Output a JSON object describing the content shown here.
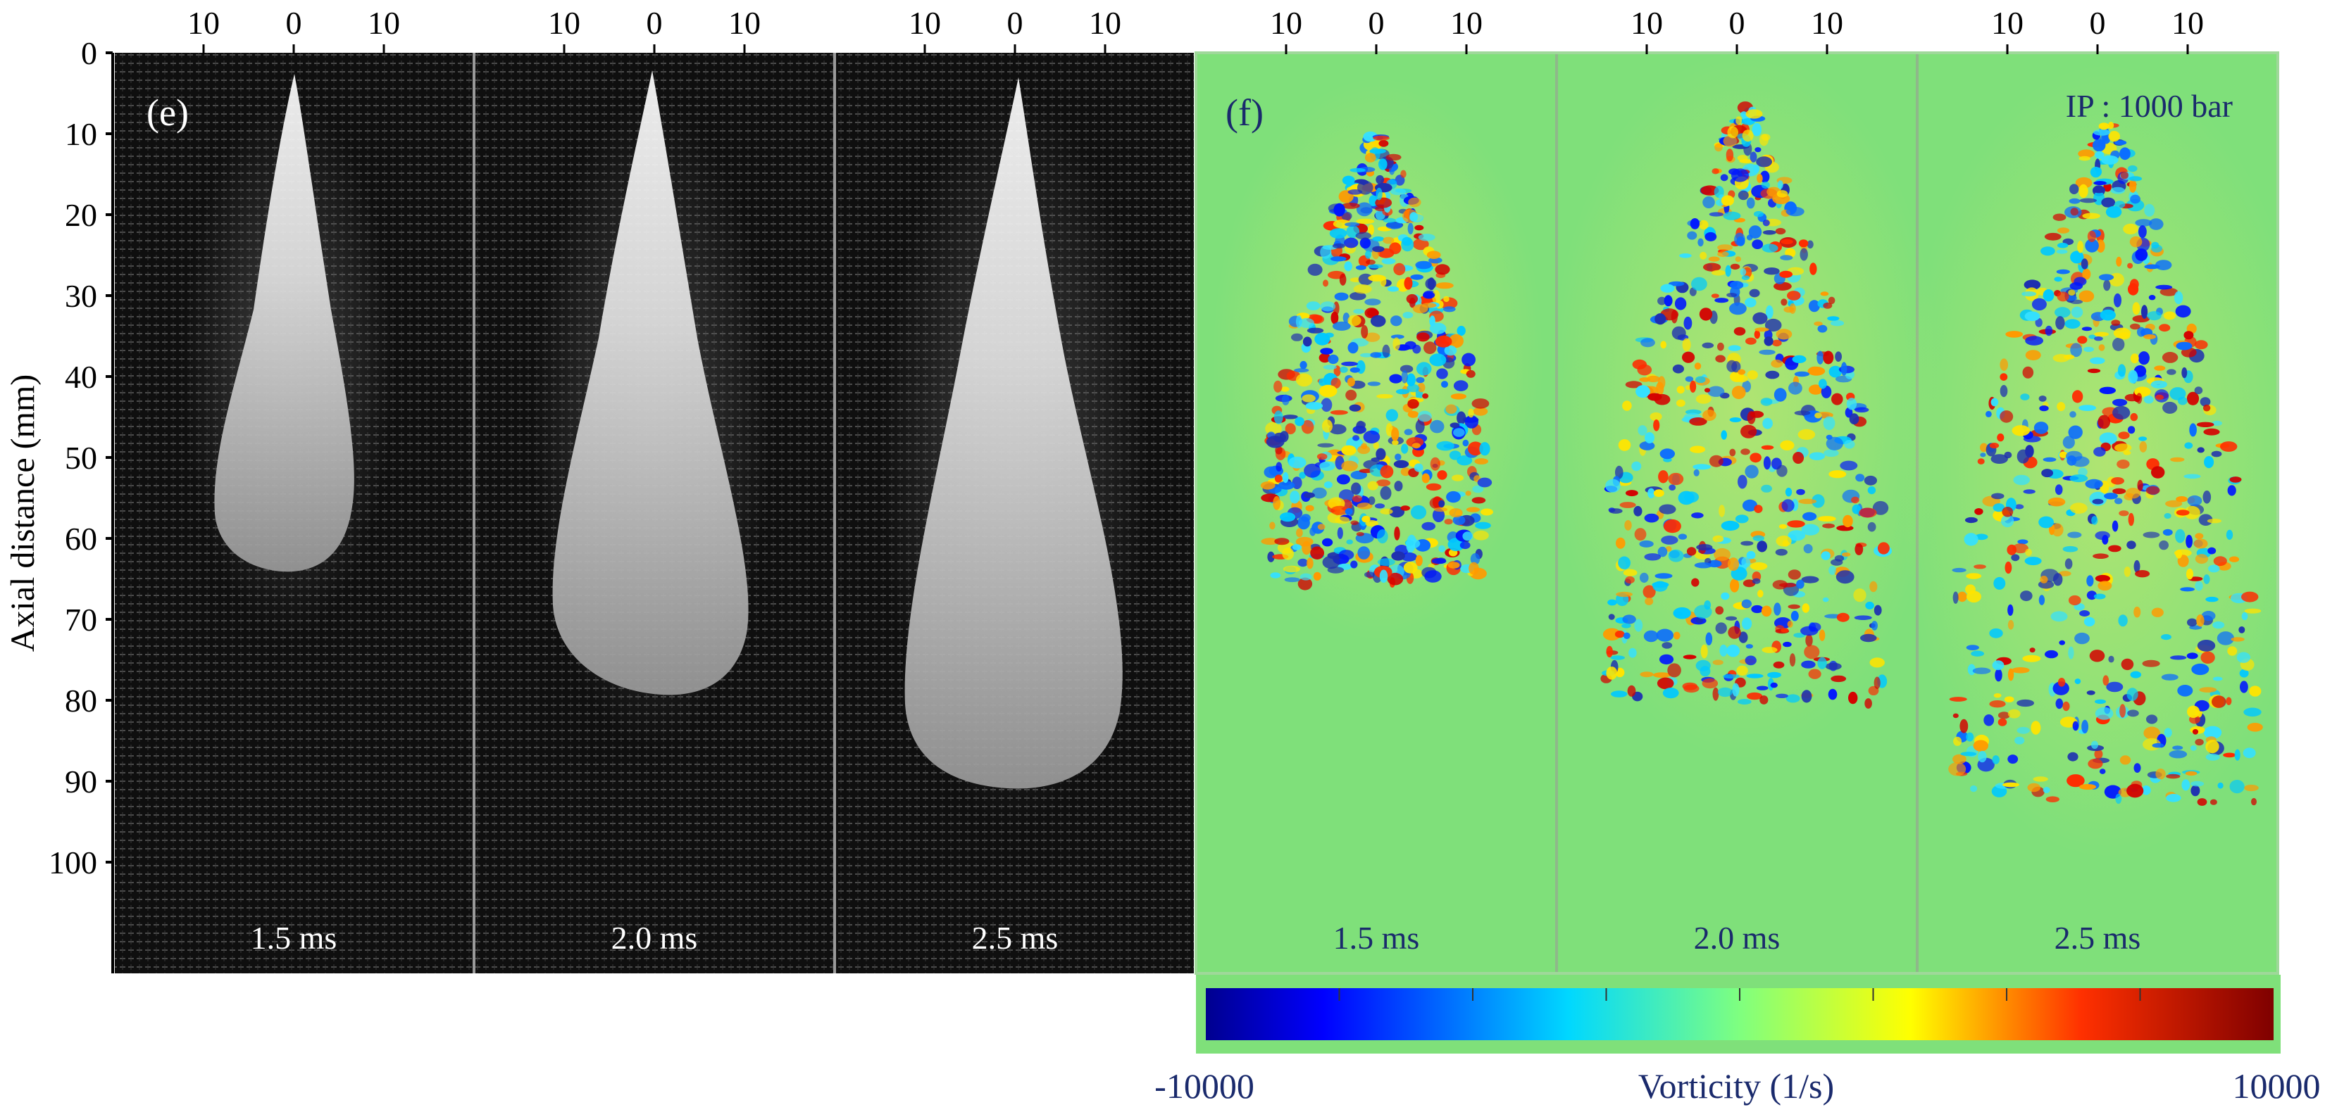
{
  "figure": {
    "y_axis_label": "Axial distance (mm)",
    "y_ticks": [
      "0",
      "10",
      "20",
      "30",
      "40",
      "50",
      "60",
      "70",
      "80",
      "90",
      "100"
    ],
    "top_ticks": [
      "10",
      "0",
      "10"
    ],
    "left_panel_label": "(e)",
    "right_panel_label": "(f)",
    "pressure_label": "IP : 1000 bar",
    "left_times": [
      "1.5 ms",
      "2.0 ms",
      "2.5 ms"
    ],
    "right_times": [
      "1.5 ms",
      "2.0 ms",
      "2.5 ms"
    ],
    "colorbar": {
      "min_label": "-10000",
      "max_label": "10000",
      "title": "Vorticity (1/s)"
    },
    "colors": {
      "field_background": "#7fe07a",
      "dark_background": "#0f0f0f",
      "label_blue": "#1a2a6c"
    }
  }
}
